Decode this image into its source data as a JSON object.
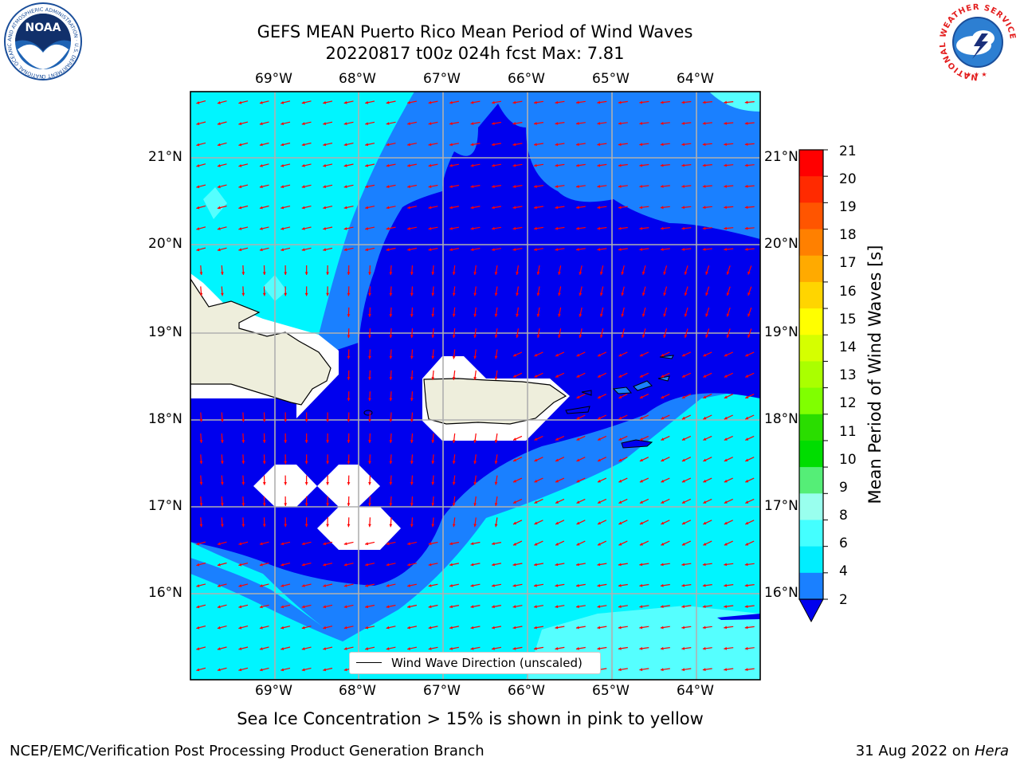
{
  "header": {
    "title_line1": "GEFS MEAN Puerto Rico Mean Period of Wind Waves",
    "title_line2": "20220817 t00z 024h fcst   Max: 7.81"
  },
  "logos": {
    "noaa": {
      "text": "NOAA",
      "ring_text": "NATIONAL OCEANIC AND ATMOSPHERIC ADMINISTRATION · U.S. DEPARTMENT OF COMMERCE"
    },
    "nws": {
      "ring_text": "NATIONAL WEATHER SERVICE"
    }
  },
  "map": {
    "lon_labels": [
      "69°W",
      "68°W",
      "67°W",
      "66°W",
      "65°W",
      "64°W"
    ],
    "lat_labels": [
      "21°N",
      "20°N",
      "19°N",
      "18°N",
      "17°N",
      "16°N"
    ],
    "legend_label": "Wind Wave Direction (unscaled)",
    "arrow_color": "#ff0000",
    "land_color": "#eeeedc"
  },
  "colorbar": {
    "label": "Mean Period of Wind Waves [s]",
    "ticks": [
      "21",
      "20",
      "19",
      "18",
      "17",
      "16",
      "15",
      "14",
      "13",
      "12",
      "11",
      "10",
      "9",
      "8",
      "6",
      "4",
      "2"
    ],
    "colors": [
      "#ff0000",
      "#ff2a00",
      "#ff5500",
      "#ff8000",
      "#ffaa00",
      "#ffd500",
      "#ffff00",
      "#d5ff00",
      "#aaff00",
      "#80ff00",
      "#2add00",
      "#00dd00",
      "#55ee77",
      "#99ffee",
      "#44ffff",
      "#00eeff",
      "#1a80ff"
    ],
    "underflow_color": "#0000ee"
  },
  "caption": "Sea Ice Concentration > 15% is shown in pink to yellow",
  "footer": {
    "left": "NCEP/EMC/Verification Post Processing Product Generation Branch",
    "right_prefix": "31 Aug 2022 on ",
    "right_host": "Hera"
  }
}
